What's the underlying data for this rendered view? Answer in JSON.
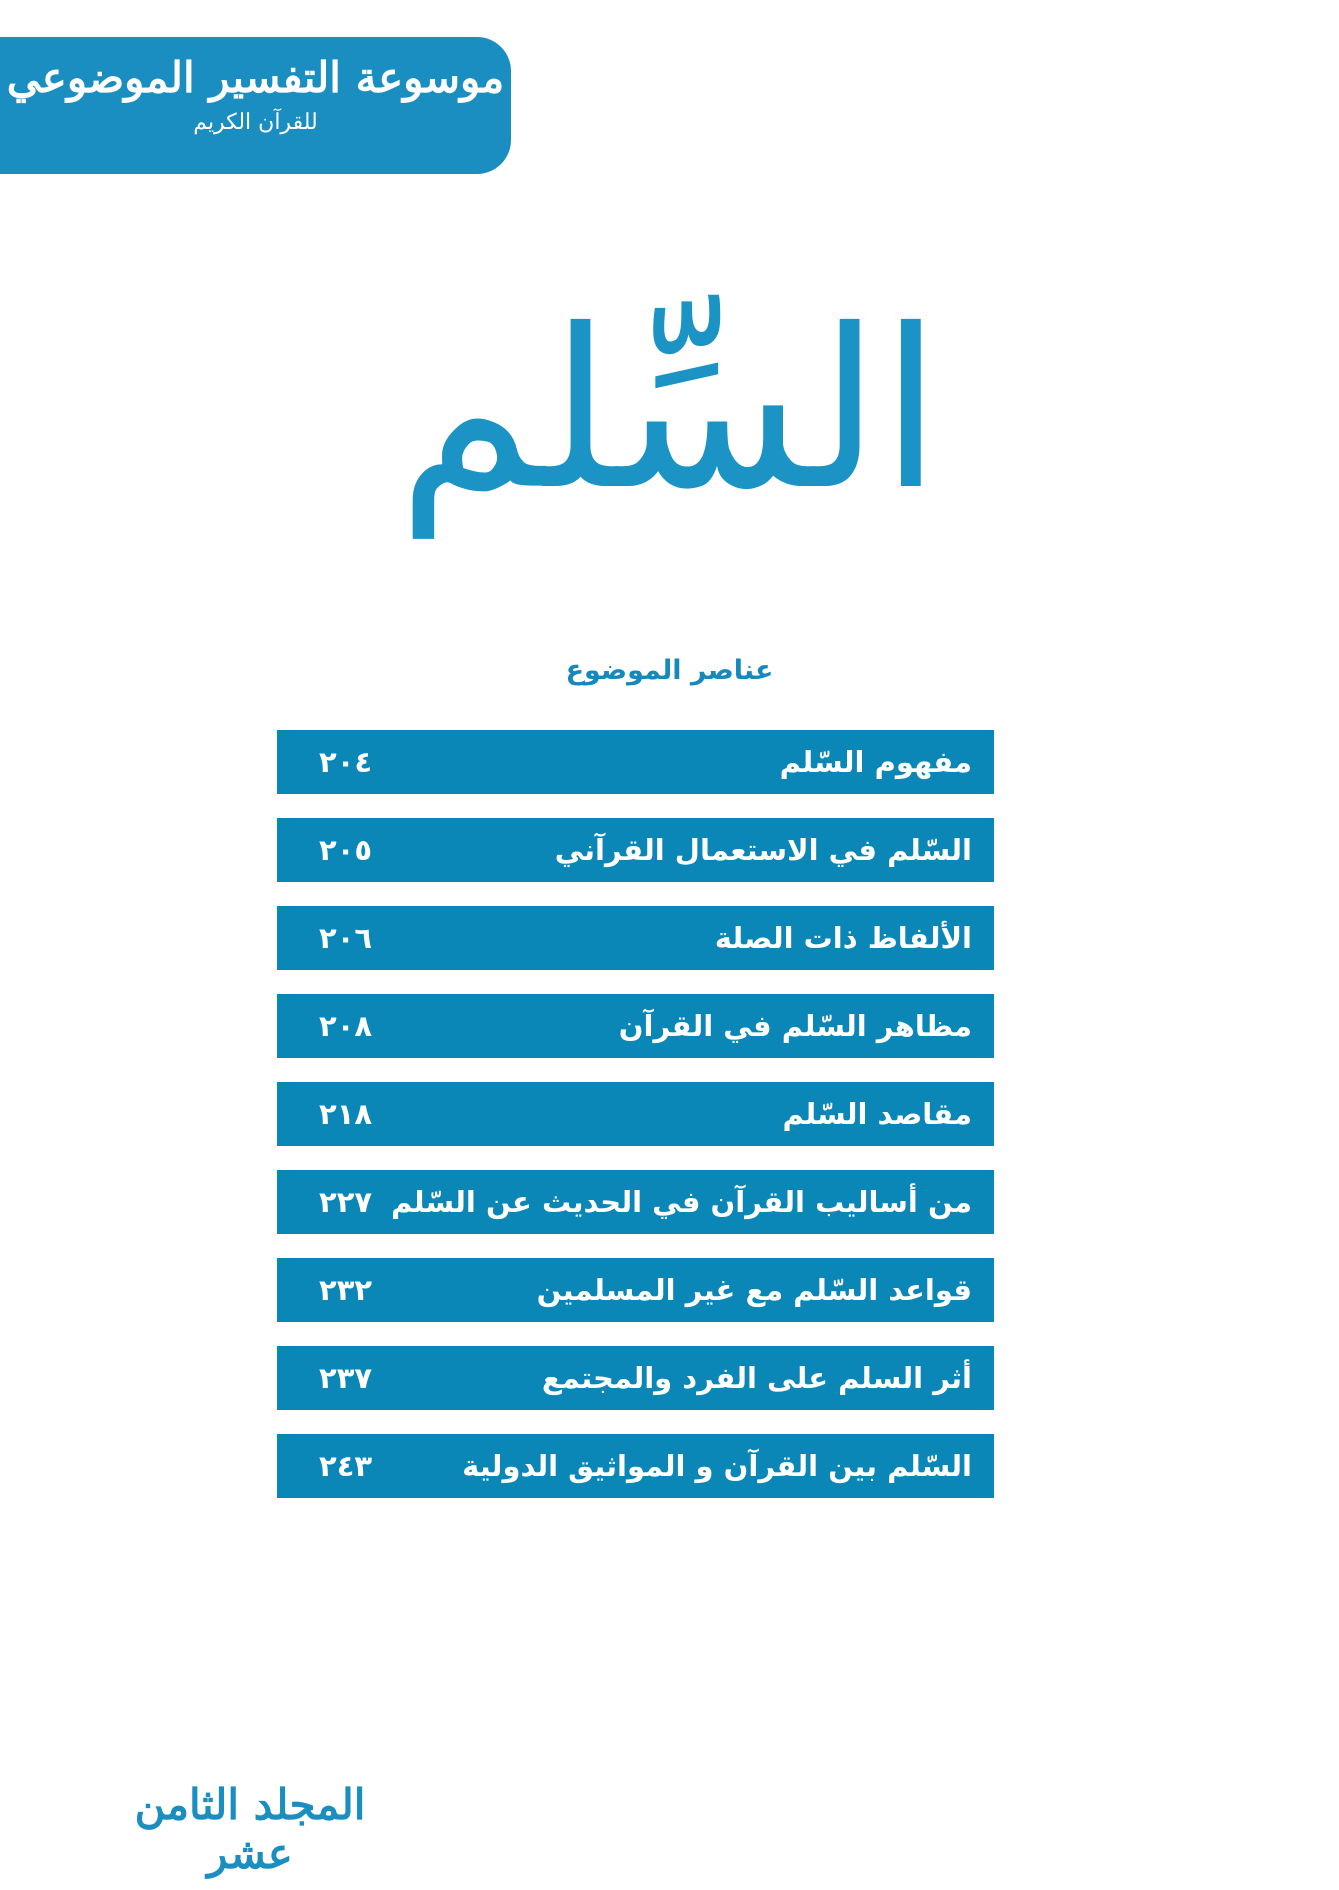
{
  "header": {
    "title": "موسوعة التفسير الموضوعي",
    "subtitle": "للقرآن الكريم"
  },
  "title": "السِّلم",
  "contents": {
    "heading": "عناصر الموضوع",
    "items": [
      {
        "title": "مفهوم السّلم",
        "page": "٢٠٤"
      },
      {
        "title": "السّلم في الاستعمال القرآني",
        "page": "٢٠٥"
      },
      {
        "title": "الألفاظ ذات الصلة",
        "page": "٢٠٦"
      },
      {
        "title": "مظاهر السّلم في القرآن",
        "page": "٢٠٨"
      },
      {
        "title": "مقاصد السّلم",
        "page": "٢١٨"
      },
      {
        "title": "من أساليب القرآن في الحديث عن السّلم",
        "page": "٢٢٧"
      },
      {
        "title": "قواعد السّلم مع غير المسلمين",
        "page": "٢٣٢"
      },
      {
        "title": "أثر السلم على الفرد والمجتمع",
        "page": "٢٣٧"
      },
      {
        "title": "السّلم بين القرآن و المواثيق الدولية",
        "page": "٢٤٣"
      }
    ]
  },
  "footer": "المجلد الثامن عشر"
}
